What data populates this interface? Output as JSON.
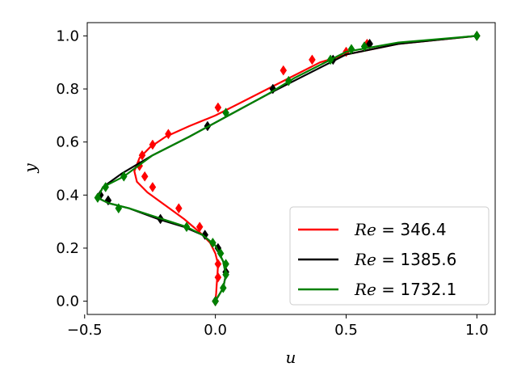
{
  "chart_data": {
    "type": "line",
    "title": "",
    "xlabel": "u",
    "ylabel": "y",
    "xlim": [
      -0.49,
      1.07
    ],
    "ylim": [
      -0.05,
      1.05
    ],
    "xticks": [
      -0.5,
      0.0,
      0.5,
      1.0
    ],
    "xtick_labels": [
      "−0.5",
      "0.0",
      "0.5",
      "1.0"
    ],
    "yticks": [
      0.0,
      0.2,
      0.4,
      0.6,
      0.8,
      1.0
    ],
    "ytick_labels": [
      "0.0",
      "0.2",
      "0.4",
      "0.6",
      "0.8",
      "1.0"
    ],
    "grid": false,
    "legend_position": "lower-right",
    "series": [
      {
        "name_prefix": "Re",
        "name_value": "346.4",
        "color": "#ff0000",
        "line": [
          [
            0.0,
            0.0
          ],
          [
            0.003,
            0.03
          ],
          [
            0.005,
            0.06
          ],
          [
            0.008,
            0.1
          ],
          [
            0.01,
            0.14
          ],
          [
            0.0,
            0.18
          ],
          [
            -0.02,
            0.22
          ],
          [
            -0.06,
            0.26
          ],
          [
            -0.12,
            0.31
          ],
          [
            -0.19,
            0.36
          ],
          [
            -0.26,
            0.41
          ],
          [
            -0.3,
            0.45
          ],
          [
            -0.31,
            0.49
          ],
          [
            -0.29,
            0.54
          ],
          [
            -0.25,
            0.58
          ],
          [
            -0.19,
            0.62
          ],
          [
            -0.1,
            0.66
          ],
          [
            0.0,
            0.7
          ],
          [
            0.1,
            0.75
          ],
          [
            0.2,
            0.8
          ],
          [
            0.3,
            0.85
          ],
          [
            0.4,
            0.9
          ],
          [
            0.5,
            0.93
          ],
          [
            0.7,
            0.97
          ],
          [
            1.0,
            1.0
          ]
        ],
        "markers": [
          [
            0.0,
            0.0
          ],
          [
            0.01,
            0.09
          ],
          [
            0.01,
            0.14
          ],
          [
            -0.06,
            0.28
          ],
          [
            -0.14,
            0.35
          ],
          [
            -0.24,
            0.43
          ],
          [
            -0.27,
            0.47
          ],
          [
            -0.29,
            0.51
          ],
          [
            -0.28,
            0.55
          ],
          [
            -0.24,
            0.59
          ],
          [
            -0.18,
            0.63
          ],
          [
            0.01,
            0.73
          ],
          [
            0.26,
            0.87
          ],
          [
            0.37,
            0.91
          ],
          [
            0.5,
            0.94
          ],
          [
            0.58,
            0.97
          ],
          [
            1.0,
            1.0
          ]
        ]
      },
      {
        "name_prefix": "Re",
        "name_value": "1385.6",
        "color": "#000000",
        "line": [
          [
            0.0,
            0.0
          ],
          [
            0.03,
            0.05
          ],
          [
            0.04,
            0.1
          ],
          [
            0.03,
            0.15
          ],
          [
            0.0,
            0.21
          ],
          [
            -0.05,
            0.25
          ],
          [
            -0.12,
            0.28
          ],
          [
            -0.22,
            0.31
          ],
          [
            -0.33,
            0.35
          ],
          [
            -0.41,
            0.37
          ],
          [
            -0.45,
            0.39
          ],
          [
            -0.43,
            0.43
          ],
          [
            -0.36,
            0.48
          ],
          [
            -0.24,
            0.55
          ],
          [
            -0.1,
            0.62
          ],
          [
            0.05,
            0.7
          ],
          [
            0.2,
            0.78
          ],
          [
            0.3,
            0.83
          ],
          [
            0.4,
            0.88
          ],
          [
            0.5,
            0.93
          ],
          [
            0.7,
            0.97
          ],
          [
            1.0,
            1.0
          ]
        ],
        "markers": [
          [
            0.0,
            0.0
          ],
          [
            0.04,
            0.11
          ],
          [
            0.01,
            0.2
          ],
          [
            -0.04,
            0.25
          ],
          [
            -0.21,
            0.31
          ],
          [
            -0.41,
            0.38
          ],
          [
            -0.44,
            0.4
          ],
          [
            -0.03,
            0.66
          ],
          [
            0.22,
            0.8
          ],
          [
            0.45,
            0.91
          ],
          [
            0.59,
            0.97
          ],
          [
            1.0,
            1.0
          ]
        ]
      },
      {
        "name_prefix": "Re",
        "name_value": "1732.1",
        "color": "#008000",
        "line": [
          [
            0.0,
            0.0
          ],
          [
            0.03,
            0.05
          ],
          [
            0.04,
            0.1
          ],
          [
            0.03,
            0.15
          ],
          [
            0.0,
            0.21
          ],
          [
            -0.05,
            0.25
          ],
          [
            -0.11,
            0.28
          ],
          [
            -0.22,
            0.315
          ],
          [
            -0.33,
            0.35
          ],
          [
            -0.41,
            0.37
          ],
          [
            -0.45,
            0.39
          ],
          [
            -0.43,
            0.43
          ],
          [
            -0.35,
            0.47
          ],
          [
            -0.24,
            0.55
          ],
          [
            -0.1,
            0.62
          ],
          [
            0.05,
            0.7
          ],
          [
            0.2,
            0.78
          ],
          [
            0.3,
            0.84
          ],
          [
            0.4,
            0.89
          ],
          [
            0.5,
            0.94
          ],
          [
            0.7,
            0.975
          ],
          [
            1.0,
            1.0
          ]
        ],
        "markers": [
          [
            0.0,
            0.0
          ],
          [
            0.03,
            0.05
          ],
          [
            0.04,
            0.1
          ],
          [
            0.04,
            0.14
          ],
          [
            0.02,
            0.18
          ],
          [
            -0.01,
            0.22
          ],
          [
            -0.11,
            0.28
          ],
          [
            -0.37,
            0.35
          ],
          [
            -0.45,
            0.39
          ],
          [
            -0.42,
            0.43
          ],
          [
            -0.35,
            0.47
          ],
          [
            0.04,
            0.71
          ],
          [
            0.28,
            0.83
          ],
          [
            0.44,
            0.91
          ],
          [
            0.52,
            0.95
          ],
          [
            0.57,
            0.96
          ],
          [
            1.0,
            1.0
          ]
        ]
      }
    ]
  }
}
